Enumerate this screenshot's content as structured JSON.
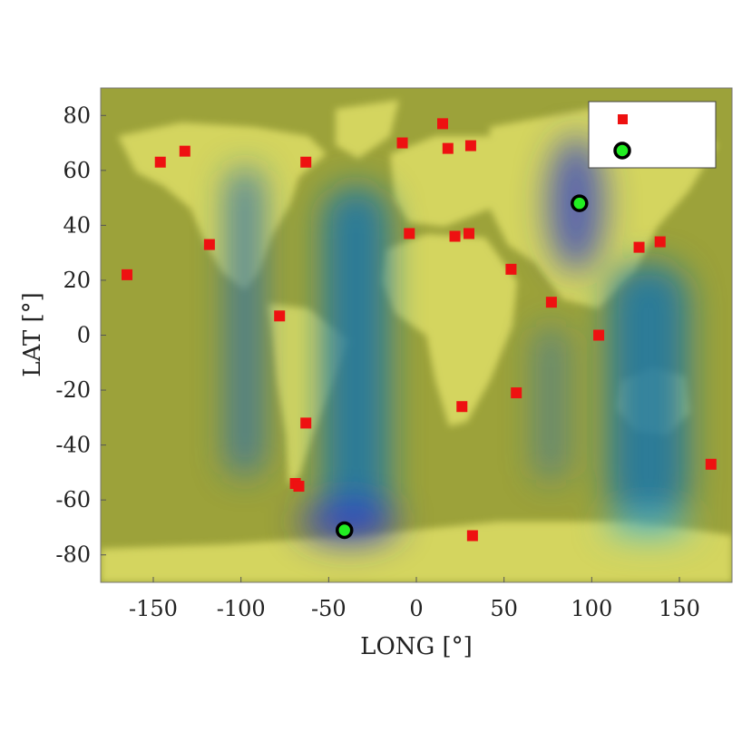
{
  "chart_data": {
    "type": "scatter",
    "xlabel": "LONG [°]",
    "ylabel": "LAT [°]",
    "xlim": [
      -180,
      180
    ],
    "ylim": [
      -90,
      90
    ],
    "xticks": [
      -150,
      -100,
      -50,
      0,
      50,
      100,
      150
    ],
    "yticks": [
      -80,
      -60,
      -40,
      -20,
      0,
      20,
      40,
      60,
      80
    ],
    "grid": false,
    "legend_position": "top-right",
    "background": "world map with blue heat regions",
    "series": [
      {
        "marker": "square",
        "color": "#ee1111",
        "points": [
          [
            -146,
            63
          ],
          [
            -132,
            67
          ],
          [
            -118,
            33
          ],
          [
            -165,
            22
          ],
          [
            -78,
            7
          ],
          [
            -63,
            63
          ],
          [
            -8,
            70
          ],
          [
            15,
            77
          ],
          [
            18,
            68
          ],
          [
            31,
            69
          ],
          [
            -4,
            37
          ],
          [
            22,
            36
          ],
          [
            30,
            37
          ],
          [
            54,
            24
          ],
          [
            77,
            12
          ],
          [
            104,
            0
          ],
          [
            127,
            32
          ],
          [
            139,
            34
          ],
          [
            26,
            -26
          ],
          [
            57,
            -21
          ],
          [
            -63,
            -32
          ],
          [
            -69,
            -54
          ],
          [
            -67,
            -55
          ],
          [
            32,
            -73
          ],
          [
            168,
            -47
          ]
        ]
      },
      {
        "marker": "circle",
        "color": "#22ee22",
        "edge_color": "#000000",
        "points": [
          [
            93,
            48
          ],
          [
            -41,
            -71
          ]
        ]
      }
    ]
  }
}
